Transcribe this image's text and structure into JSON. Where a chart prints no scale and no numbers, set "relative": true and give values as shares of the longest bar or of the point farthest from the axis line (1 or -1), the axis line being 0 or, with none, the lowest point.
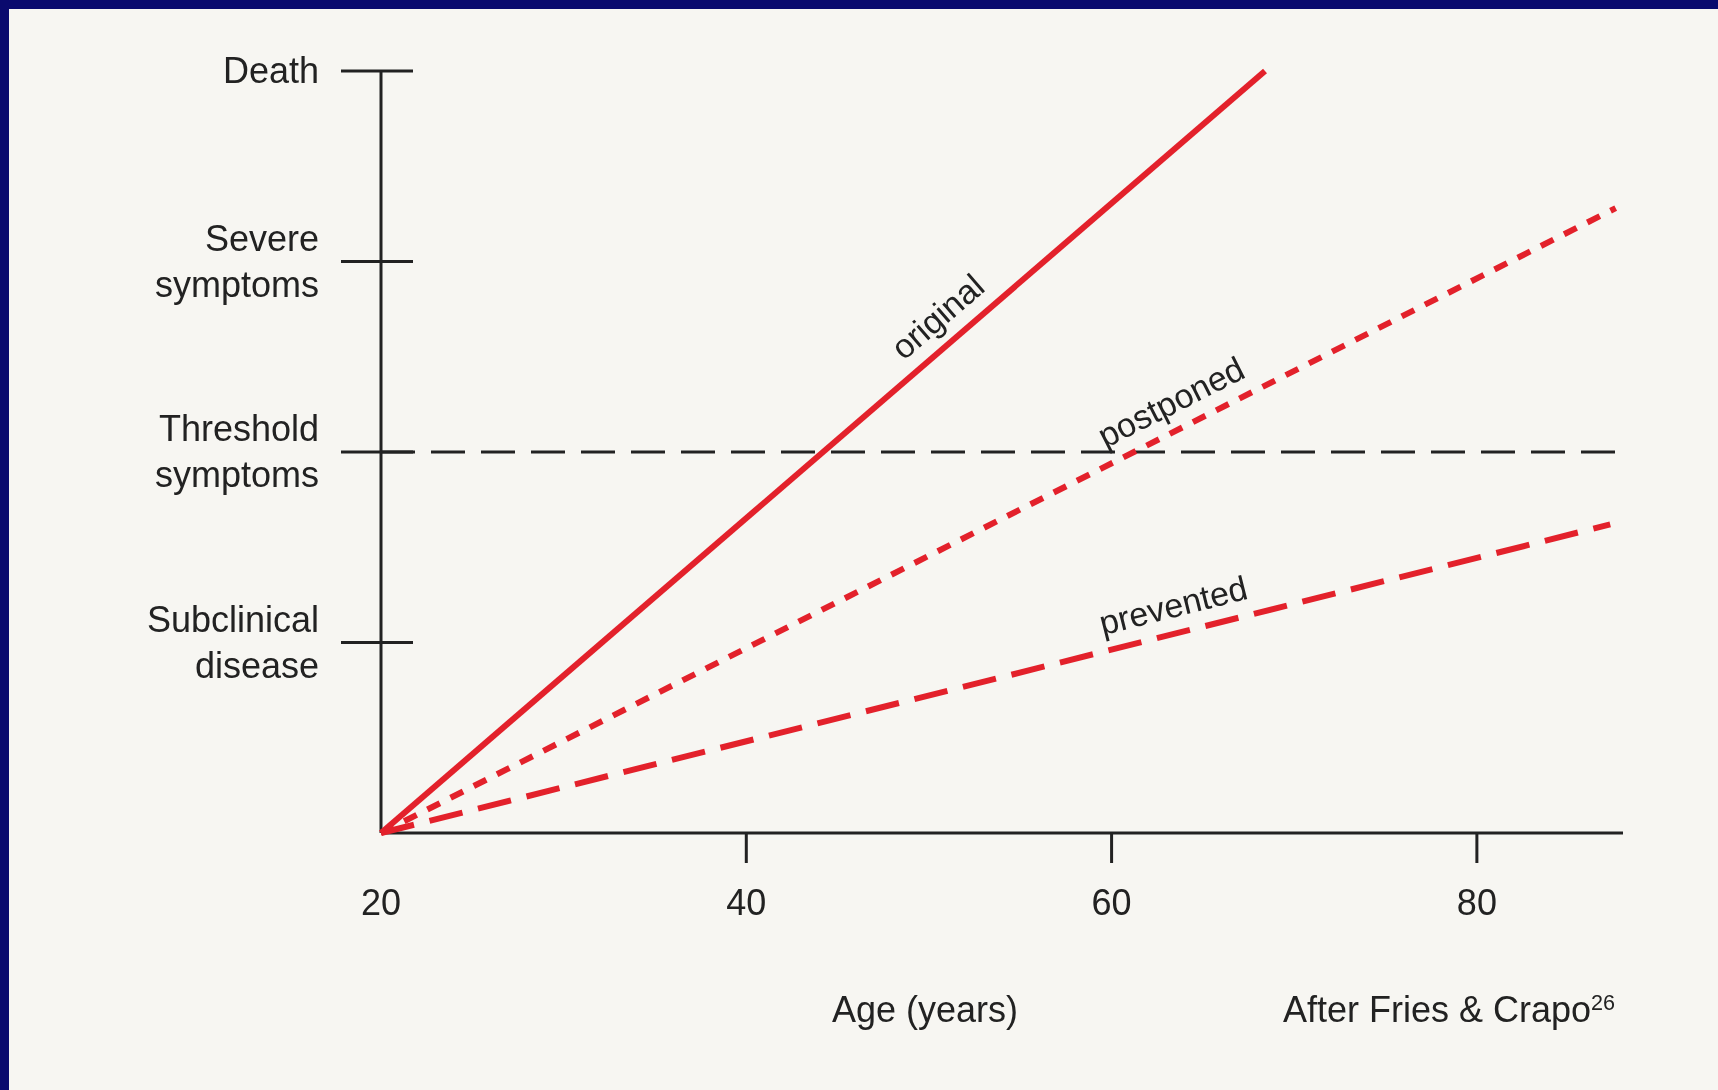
{
  "chart_data": {
    "type": "line",
    "xlabel": "Age (years)",
    "relative": true,
    "annotations": [
      "Subclinical disease",
      "Threshold symptoms",
      "Severe symptoms",
      "Death",
      "After Fries & Crapo$^{26}$"
    ],
    "xlim": [
      20,
      88
    ],
    "xticks": [
      20,
      40,
      60,
      80
    ],
    "series": [
      {
        "name": "original",
        "color": "#e3212b",
        "x": [
          20,
          68.4
        ],
        "values": [
          0,
          1
        ],
        "line_style": "solid"
      },
      {
        "name": "postponed",
        "color": "#e3212b",
        "x": [
          20,
          87.6
        ],
        "values": [
          0,
          0.82
        ],
        "line_style": "dotted"
      },
      {
        "name": "prevented",
        "color": "#e3212b",
        "x": [
          20,
          87.3
        ],
        "values": [
          0,
          0.405
        ],
        "line_style": "dashed"
      }
    ],
    "ref_lines": [
      {
        "axis": "y",
        "value": 0.5,
        "color": "#222222",
        "line_style": "dashed"
      }
    ],
    "legend": false,
    "marker": "none"
  }
}
